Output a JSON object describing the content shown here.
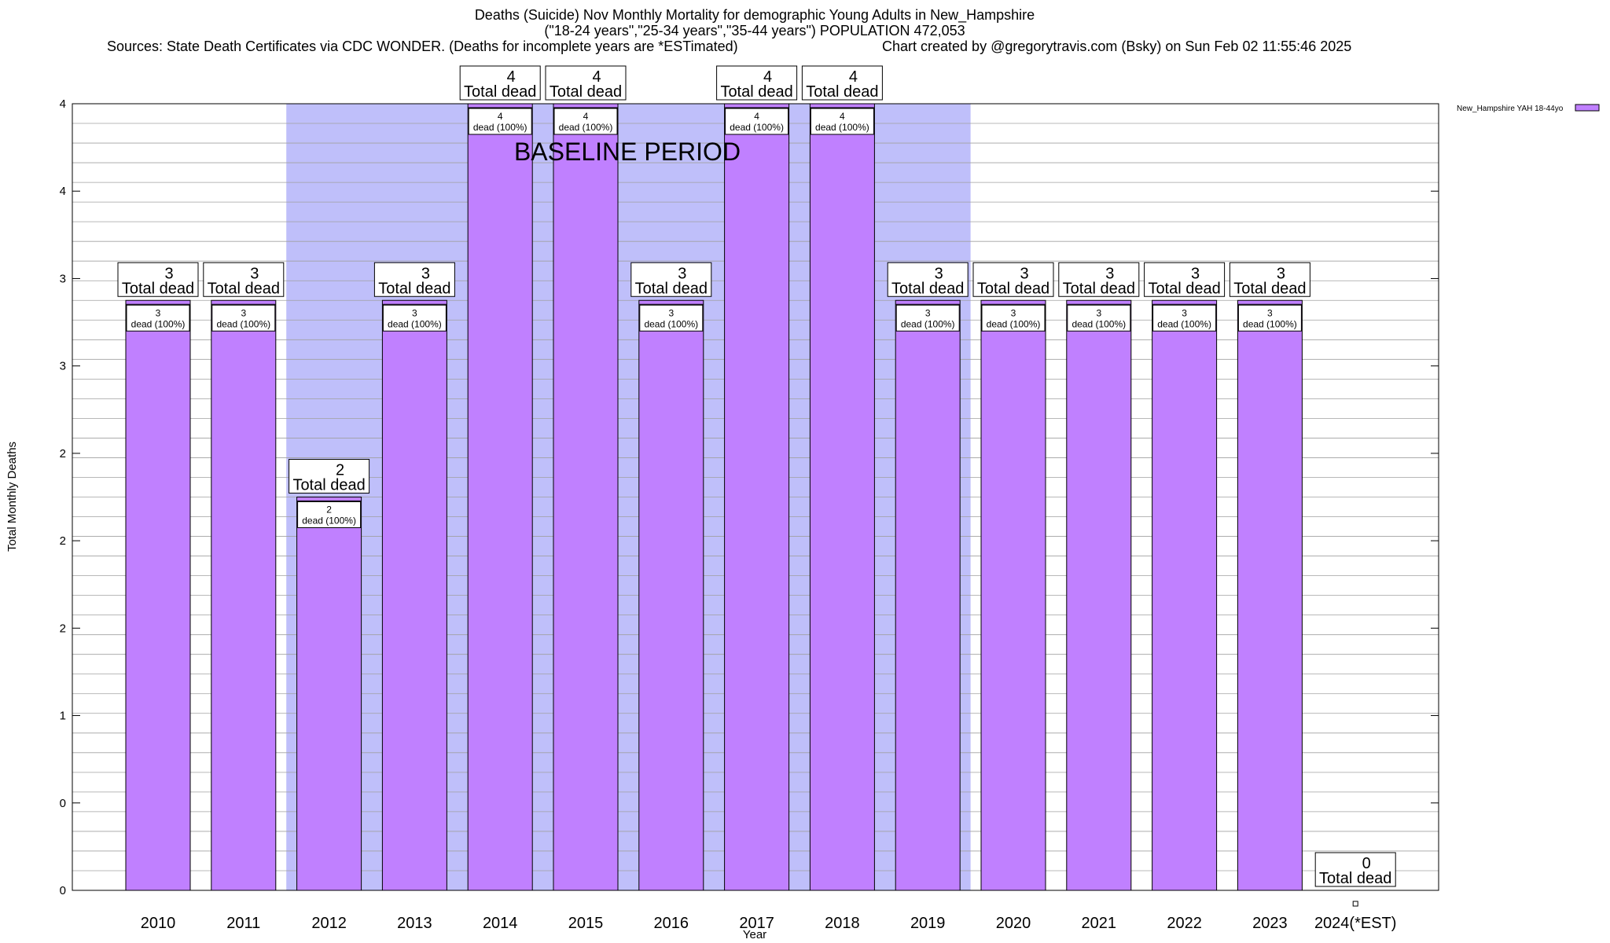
{
  "colors": {
    "bar": "#c080ff",
    "baseline_band": "#bfbffa",
    "grid": "#a0a0a0",
    "border": "#000000"
  },
  "chart_data": {
    "type": "bar",
    "title": "Deaths (Suicide) Nov Monthly Mortality for demographic Young Adults in New_Hampshire",
    "subtitle": "(\"18-24 years\",\"25-34 years\",\"35-44 years\") POPULATION 472,053",
    "source_line": "Sources: State Death Certificates via CDC WONDER. (Deaths for incomplete years are *ESTimated)",
    "credit_line": "Chart created by @gregorytravis.com (Bsky) on Sun Feb 02 11:55:46 2025",
    "xlabel": "Year",
    "ylabel": "Total Monthly Deaths",
    "ylim": [
      0,
      4
    ],
    "y_tick_labels": [
      "0",
      "0",
      "1",
      "2",
      "2",
      "2",
      "3",
      "3",
      "4",
      "4"
    ],
    "categories": [
      "2010",
      "2011",
      "2012",
      "2013",
      "2014",
      "2015",
      "2016",
      "2017",
      "2018",
      "2019",
      "2020",
      "2021",
      "2022",
      "2023",
      "2024(*EST)"
    ],
    "values": [
      3,
      3,
      2,
      3,
      4,
      4,
      3,
      4,
      4,
      3,
      3,
      3,
      3,
      3,
      0
    ],
    "total_label_prefix": "Total dead",
    "inner_label": "dead (100%)",
    "baseline": {
      "label": "BASELINE PERIOD",
      "start": "2012",
      "end": "2019"
    },
    "legend": {
      "label": "New_Hampshire YAH 18-44yo",
      "placement": "top-right"
    }
  }
}
